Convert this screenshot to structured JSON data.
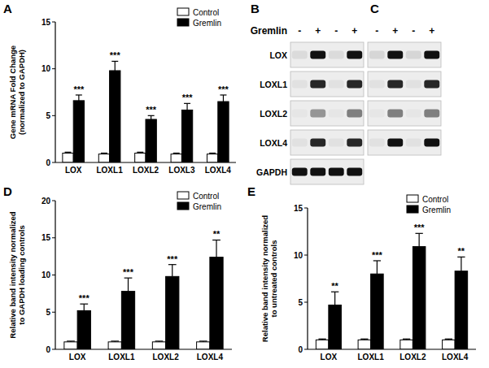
{
  "chart_data": [
    {
      "type": "bar",
      "panel": "A",
      "ylabel": "Gene mRNA Fold Change\n(normalized to GAPDH)",
      "categories": [
        "LOX",
        "LOXL1",
        "LOXL2",
        "LOXL3",
        "LOXL4"
      ],
      "series": [
        {
          "name": "Control",
          "color": "#ffffff",
          "values": [
            1,
            0.9,
            1,
            0.9,
            0.9
          ],
          "errors": [
            0.1,
            0.1,
            0.1,
            0.1,
            0.1
          ]
        },
        {
          "name": "Gremlin",
          "color": "#000000",
          "values": [
            6.6,
            9.8,
            4.6,
            5.6,
            6.5
          ],
          "errors": [
            0.6,
            1.0,
            0.4,
            0.7,
            0.7
          ]
        }
      ],
      "significance": [
        "***",
        "***",
        "***",
        "***",
        "***"
      ],
      "ylim": [
        0,
        15
      ],
      "yticks": [
        0,
        5,
        10,
        15
      ],
      "legend": "upper right"
    },
    {
      "type": "bar",
      "panel": "D",
      "ylabel": "Relative band intensity normalized\nto GAPDH loading controls",
      "categories": [
        "LOX",
        "LOXL1",
        "LOXL2",
        "LOXL4"
      ],
      "series": [
        {
          "name": "Control",
          "color": "#ffffff",
          "values": [
            1,
            1,
            1,
            1
          ],
          "errors": [
            0.1,
            0.1,
            0.1,
            0.1
          ]
        },
        {
          "name": "Gremlin",
          "color": "#000000",
          "values": [
            5.2,
            7.8,
            9.8,
            12.4
          ],
          "errors": [
            0.9,
            1.8,
            1.6,
            2.3
          ]
        }
      ],
      "significance": [
        "***",
        "***",
        "***",
        "**"
      ],
      "ylim": [
        0,
        20
      ],
      "yticks": [
        0,
        5,
        10,
        15,
        20
      ],
      "legend": "upper right"
    },
    {
      "type": "bar",
      "panel": "E",
      "ylabel": "Relative band intensity normalized\nto untreated controls",
      "categories": [
        "LOX",
        "LOXL1",
        "LOXL2",
        "LOXL4"
      ],
      "series": [
        {
          "name": "Control",
          "color": "#ffffff",
          "values": [
            1,
            1,
            1,
            1
          ],
          "errors": [
            0.1,
            0.1,
            0.1,
            0.1
          ]
        },
        {
          "name": "Gremlin",
          "color": "#000000",
          "values": [
            4.7,
            8.0,
            10.9,
            8.3
          ],
          "errors": [
            1.4,
            1.4,
            1.4,
            1.5
          ]
        }
      ],
      "significance": [
        "**",
        "***",
        "***",
        "**"
      ],
      "ylim": [
        0,
        15
      ],
      "yticks": [
        0,
        5,
        10,
        15
      ],
      "legend": "upper right"
    }
  ],
  "blots": [
    {
      "panel": "B",
      "treatment": "Gremlin",
      "lanes": [
        "-",
        "+",
        "-",
        "+"
      ],
      "rows": [
        {
          "label": "LOX",
          "intensity": [
            0.08,
            1,
            0.08,
            1
          ]
        },
        {
          "label": "LOXL1",
          "intensity": [
            0.05,
            0.9,
            0.05,
            0.9
          ]
        },
        {
          "label": "LOXL2",
          "intensity": [
            0.03,
            0.4,
            0.03,
            0.5
          ]
        },
        {
          "label": "LOXL4",
          "intensity": [
            0.05,
            0.9,
            0.05,
            0.9
          ]
        },
        {
          "label": "GAPDH",
          "intensity": [
            1,
            1,
            1,
            1
          ]
        }
      ]
    },
    {
      "panel": "C",
      "lanes": [
        "-",
        "+",
        "-",
        "+"
      ],
      "rows": [
        {
          "intensity": [
            0.1,
            1,
            0.1,
            1
          ]
        },
        {
          "intensity": [
            0.05,
            0.9,
            0.05,
            0.9
          ]
        },
        {
          "intensity": [
            0.03,
            0.5,
            0.03,
            0.5
          ]
        },
        {
          "intensity": [
            0.05,
            1,
            0.05,
            1
          ]
        }
      ]
    }
  ]
}
